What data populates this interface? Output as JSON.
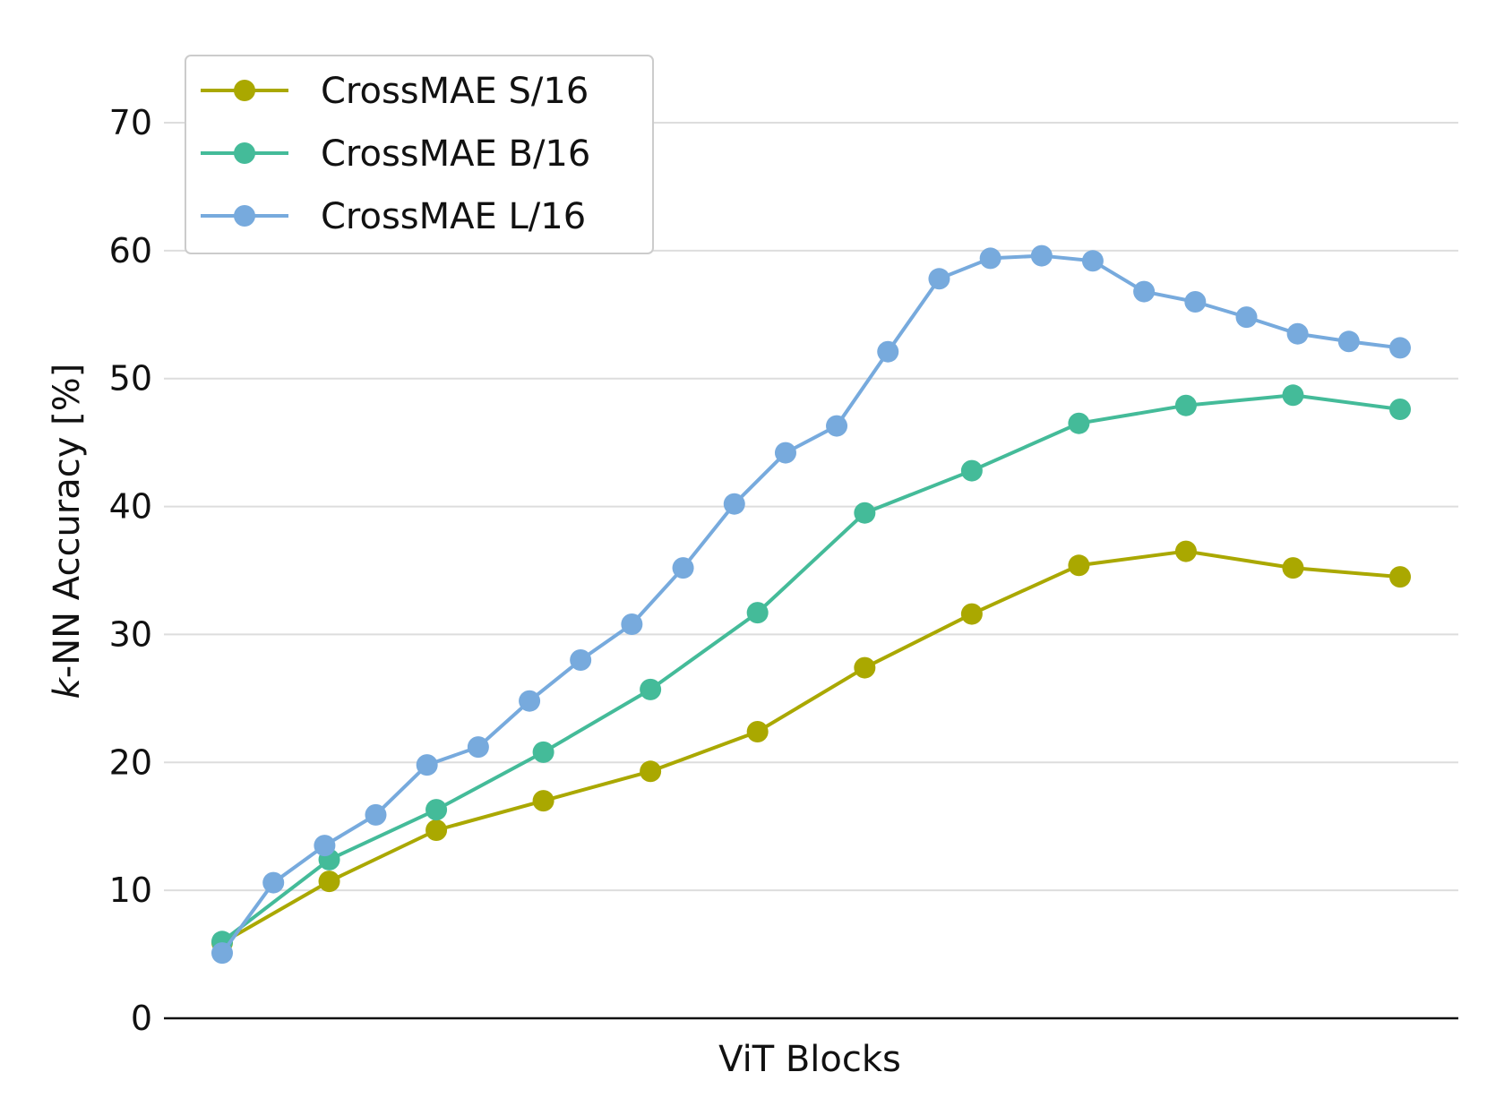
{
  "chart_data": {
    "type": "line",
    "title": "",
    "xlabel": "ViT Blocks",
    "ylabel_italic_prefix": "k",
    "ylabel_rest": "-NN Accuracy [%]",
    "ylim": [
      0,
      75
    ],
    "yticks": [
      0,
      10,
      20,
      30,
      40,
      50,
      60,
      70
    ],
    "xlim": [
      0,
      1
    ],
    "grid": "horizontal",
    "legend_placement": "top-left",
    "series": [
      {
        "name": "CrossMAE S/16",
        "color": "#aaa800",
        "x": [
          0,
          0.0909,
          0.1818,
          0.2727,
          0.3636,
          0.4545,
          0.5455,
          0.6364,
          0.7273,
          0.8182,
          0.9091,
          1.0
        ],
        "values": [
          5.9,
          10.7,
          14.7,
          17.0,
          19.3,
          22.4,
          27.4,
          31.6,
          35.4,
          36.5,
          35.2,
          34.5
        ]
      },
      {
        "name": "CrossMAE B/16",
        "color": "#44bb99",
        "x": [
          0,
          0.0909,
          0.1818,
          0.2727,
          0.3636,
          0.4545,
          0.5455,
          0.6364,
          0.7273,
          0.8182,
          0.9091,
          1.0
        ],
        "values": [
          6.0,
          12.4,
          16.3,
          20.8,
          25.7,
          31.7,
          39.5,
          42.8,
          46.5,
          47.9,
          48.7,
          47.6
        ]
      },
      {
        "name": "CrossMAE L/16",
        "color": "#77aadd",
        "x": [
          0,
          0.0435,
          0.087,
          0.1304,
          0.1739,
          0.2174,
          0.2609,
          0.3043,
          0.3478,
          0.3913,
          0.4348,
          0.4783,
          0.5217,
          0.5652,
          0.6087,
          0.6522,
          0.6957,
          0.7391,
          0.7826,
          0.8261,
          0.8696,
          0.913,
          0.9565,
          1.0
        ],
        "values": [
          5.1,
          10.6,
          13.5,
          15.9,
          19.8,
          21.2,
          24.8,
          28.0,
          30.8,
          35.2,
          40.2,
          44.2,
          46.3,
          52.1,
          57.8,
          59.4,
          59.6,
          59.2,
          56.8,
          56.0,
          54.8,
          53.5,
          52.9,
          52.4
        ]
      }
    ]
  }
}
